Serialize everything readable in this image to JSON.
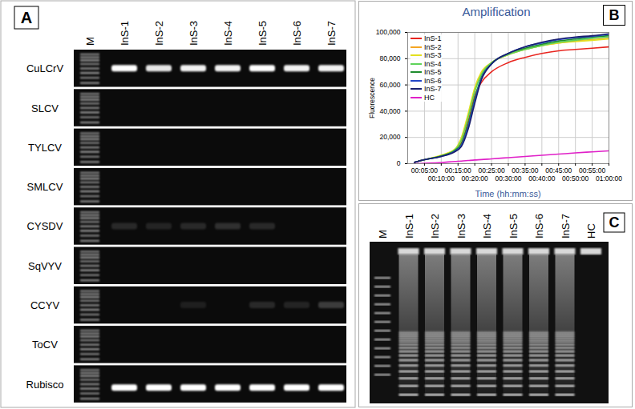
{
  "panel_a": {
    "label": "A",
    "lanes": [
      "M",
      "InS-1",
      "InS-2",
      "InS-3",
      "InS-4",
      "InS-5",
      "InS-6",
      "InS-7"
    ],
    "rows": [
      {
        "name": "CuLCrV",
        "bands": [
          1,
          0.9,
          0.95,
          0.95,
          1,
          0.95,
          0.95
        ]
      },
      {
        "name": "SLCV",
        "bands": [
          0,
          0,
          0,
          0,
          0,
          0,
          0
        ]
      },
      {
        "name": "TYLCV",
        "bands": [
          0,
          0,
          0,
          0,
          0,
          0,
          0
        ]
      },
      {
        "name": "SMLCV",
        "bands": [
          0,
          0,
          0,
          0,
          0,
          0,
          0
        ]
      },
      {
        "name": "CYSDV",
        "bands": [
          0.12,
          0.1,
          0.12,
          0.15,
          0.12,
          0,
          0
        ]
      },
      {
        "name": "SqVYV",
        "bands": [
          0,
          0,
          0,
          0,
          0,
          0,
          0
        ]
      },
      {
        "name": "CCYV",
        "bands": [
          0,
          0,
          0.08,
          0,
          0.12,
          0.1,
          0.2
        ]
      },
      {
        "name": "ToCV",
        "bands": [
          0,
          0,
          0,
          0,
          0,
          0,
          0
        ]
      },
      {
        "name": "Rubisco",
        "bands": [
          1,
          1,
          1,
          1,
          1,
          1,
          1
        ]
      }
    ]
  },
  "chart_data": {
    "type": "line",
    "label": "B",
    "title": "Amplification",
    "x_label": "Time (hh:mm:ss)",
    "y_label": "Fluorescence",
    "x": [
      2,
      5,
      10,
      14,
      16,
      18,
      20,
      22,
      25,
      30,
      35,
      40,
      45,
      50,
      55,
      60
    ],
    "series": [
      {
        "name": "InS-1",
        "color": "#e8251f",
        "values": [
          1000,
          3000,
          6000,
          10000,
          16000,
          32000,
          52000,
          62000,
          70000,
          77000,
          81000,
          84000,
          86000,
          87000,
          88000,
          89000
        ]
      },
      {
        "name": "InS-2",
        "color": "#f5a623",
        "values": [
          1000,
          3000,
          6000,
          10000,
          18000,
          36000,
          56000,
          69000,
          77000,
          83000,
          87000,
          90000,
          92000,
          93500,
          94500,
          95500
        ]
      },
      {
        "name": "InS-3",
        "color": "#e3e020",
        "values": [
          1000,
          3000,
          6500,
          11000,
          20000,
          38000,
          58000,
          70000,
          77000,
          83000,
          87000,
          90000,
          92000,
          93000,
          94000,
          95000
        ]
      },
      {
        "name": "InS-4",
        "color": "#5ed35a",
        "values": [
          1000,
          3000,
          6000,
          10500,
          18000,
          35000,
          55000,
          68000,
          77000,
          83000,
          87000,
          90000,
          92500,
          94000,
          95500,
          96500
        ]
      },
      {
        "name": "InS-5",
        "color": "#1e8c2e",
        "values": [
          1000,
          3000,
          6000,
          10000,
          15000,
          30000,
          50000,
          66000,
          76000,
          84000,
          88000,
          91000,
          93500,
          95000,
          96500,
          97500
        ]
      },
      {
        "name": "InS-6",
        "color": "#2446c8",
        "values": [
          1000,
          3000,
          5500,
          9500,
          14000,
          28000,
          48000,
          65000,
          76000,
          84000,
          89000,
          92000,
          94500,
          96000,
          97000,
          98500
        ]
      },
      {
        "name": "InS-7",
        "color": "#1a1f6e",
        "values": [
          1000,
          3000,
          5500,
          9000,
          13000,
          26000,
          46000,
          64000,
          76000,
          84000,
          89000,
          92500,
          95000,
          96500,
          97500,
          99000
        ]
      },
      {
        "name": "HC",
        "color": "#e020c8",
        "values": [
          0,
          300,
          900,
          1700,
          2000,
          2400,
          2800,
          3100,
          3700,
          4600,
          5500,
          6400,
          7300,
          8200,
          9000,
          9800
        ]
      }
    ],
    "xlim": [
      0,
      60
    ],
    "xticks": [
      {
        "value": 5,
        "label": "00:05:00"
      },
      {
        "value": 10,
        "label": "00:10:00"
      },
      {
        "value": 15,
        "label": "00:15:00"
      },
      {
        "value": 20,
        "label": "00:20:00"
      },
      {
        "value": 25,
        "label": "00:25:00"
      },
      {
        "value": 30,
        "label": "00:30:00"
      },
      {
        "value": 35,
        "label": "00:35:00"
      },
      {
        "value": 40,
        "label": "00:40:00"
      },
      {
        "value": 45,
        "label": "00:45:00"
      },
      {
        "value": 50,
        "label": "00:50:00"
      },
      {
        "value": 55,
        "label": "00:55:00"
      },
      {
        "value": 60,
        "label": "01:00:00"
      }
    ],
    "ylim": [
      0,
      100000
    ],
    "yticks": [
      0,
      {
        "value": 20000,
        "label": "20,000"
      },
      {
        "value": 40000,
        "label": "40,000"
      },
      {
        "value": 60000,
        "label": "60,000"
      },
      {
        "value": 80000,
        "label": "80,000"
      },
      {
        "value": 100000,
        "label": "100,000"
      }
    ],
    "grid": true,
    "legend": "top-left"
  },
  "panel_c": {
    "label": "C",
    "lanes": [
      "M",
      "InS-1",
      "InS-2",
      "InS-3",
      "InS-4",
      "InS-5",
      "InS-6",
      "InS-7",
      "HC"
    ],
    "amplification": [
      1,
      1,
      1,
      1,
      1,
      1,
      1,
      0
    ]
  }
}
